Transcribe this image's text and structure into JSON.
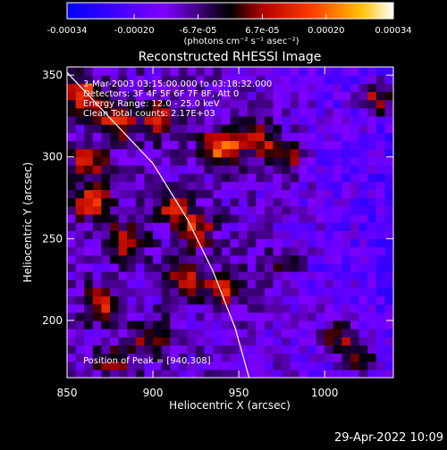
{
  "chart_data": {
    "type": "heatmap",
    "title": "Reconstructed RHESSI Image",
    "xlabel": "Heliocentric X (arcsec)",
    "ylabel": "Heliocentric Y (arcsec)",
    "xlim": [
      850,
      1040
    ],
    "ylim": [
      165,
      355
    ],
    "x_ticks": [
      "850",
      "900",
      "950",
      "1000"
    ],
    "y_ticks": [
      "200",
      "250",
      "300",
      "350"
    ],
    "x_tick_values": [
      850,
      900,
      950,
      1000
    ],
    "y_tick_values": [
      200,
      250,
      300,
      350
    ],
    "colorbar": {
      "ticks": [
        "-0.00034",
        "-0.00020",
        "-6.7e-05",
        "6.7e-05",
        "0.00020",
        "0.00034"
      ],
      "tick_values": [
        -0.00034,
        -0.0002,
        -6.7e-05,
        6.7e-05,
        0.0002,
        0.00034
      ],
      "range": [
        -0.00034,
        0.00034
      ],
      "unit_label": "(photons cm⁻² s⁻¹ asec⁻²)"
    },
    "info_lines": [
      "3-Mar-2003 03:15:00.000 to 03:18:32.000",
      "Detectors: 3F 4F 5F 6F 7F 8F, Att 0",
      "Energy Range: 12.0 - 25.0 keV",
      "Clean     Total counts: 2.17E+03"
    ],
    "peak_label": "Position of Peak = [940,308]",
    "peak": [
      940,
      308
    ],
    "limb_curve": [
      [
        847,
        355
      ],
      [
        900,
        296
      ],
      [
        920,
        262
      ],
      [
        935,
        230
      ],
      [
        948,
        195
      ],
      [
        956,
        165
      ]
    ],
    "hot_spots": [
      {
        "x": 941,
        "y": 307,
        "v": 1.0
      },
      {
        "x": 860,
        "y": 338,
        "v": 0.85
      },
      {
        "x": 879,
        "y": 322,
        "v": 0.7
      },
      {
        "x": 905,
        "y": 323,
        "v": 0.65
      },
      {
        "x": 1030,
        "y": 335,
        "v": 0.7
      },
      {
        "x": 862,
        "y": 298,
        "v": 0.7
      },
      {
        "x": 865,
        "y": 272,
        "v": 0.75
      },
      {
        "x": 884,
        "y": 248,
        "v": 0.75
      },
      {
        "x": 925,
        "y": 255,
        "v": 0.7
      },
      {
        "x": 912,
        "y": 270,
        "v": 0.6
      },
      {
        "x": 963,
        "y": 310,
        "v": 0.6
      },
      {
        "x": 978,
        "y": 300,
        "v": 0.55
      },
      {
        "x": 870,
        "y": 210,
        "v": 0.7
      },
      {
        "x": 920,
        "y": 225,
        "v": 0.65
      },
      {
        "x": 942,
        "y": 220,
        "v": 0.6
      },
      {
        "x": 900,
        "y": 190,
        "v": 0.55
      },
      {
        "x": 1008,
        "y": 190,
        "v": 0.6
      },
      {
        "x": 1022,
        "y": 178,
        "v": 0.55
      },
      {
        "x": 975,
        "y": 235,
        "v": 0.4
      },
      {
        "x": 878,
        "y": 175,
        "v": 0.5
      }
    ],
    "grid": false
  },
  "footer": {
    "date": "29-Apr-2022 10:09"
  }
}
